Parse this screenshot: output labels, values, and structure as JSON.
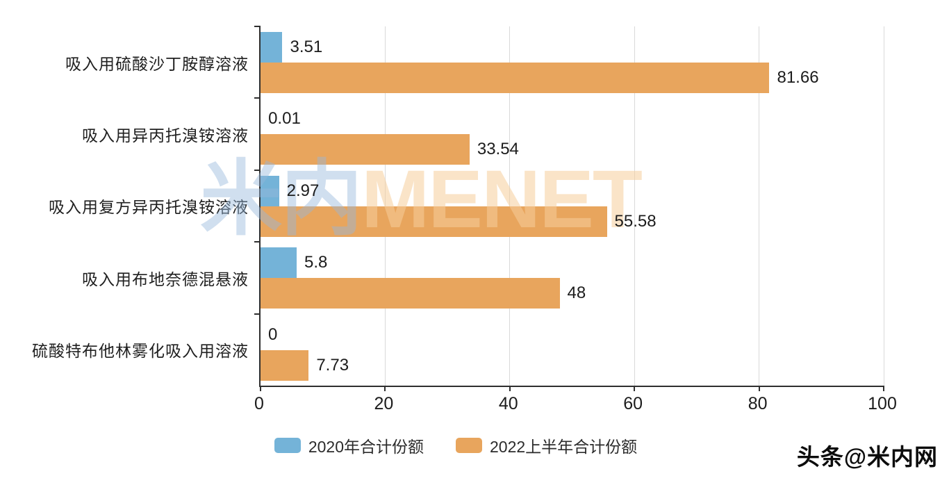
{
  "watermarks": {
    "center_part1": "米内",
    "center_part2": "MENET",
    "bottom_right": "头条@米内网"
  },
  "colors": {
    "bar_2020": "#74b3d8",
    "bar_2022": "#e8a55d",
    "axis": "#2f2f2f",
    "gridline": "#d9d9d9",
    "value_text": "#1c1c1c",
    "watermark_blue": "rgba(150,185,220,0.45)",
    "watermark_orange": "rgba(245,205,155,0.55)"
  },
  "chart_data": {
    "type": "bar",
    "orientation": "horizontal",
    "title": "",
    "categories": [
      "吸入用硫酸沙丁胺醇溶液",
      "吸入用异丙托溴铵溶液",
      "吸入用复方异丙托溴铵溶液",
      "吸入用布地奈德混悬液",
      "硫酸特布他林雾化吸入用溶液"
    ],
    "series": [
      {
        "name": "2020年合计份额",
        "color": "#74b3d8",
        "values": [
          3.51,
          0.01,
          2.97,
          5.8,
          0
        ]
      },
      {
        "name": "2022上半年合计份额",
        "color": "#e8a55d",
        "values": [
          81.66,
          33.54,
          55.58,
          48,
          7.73
        ]
      }
    ],
    "value_labels": {
      "series_0": [
        "3.51",
        "0.01",
        "2.97",
        "5.8",
        "0"
      ],
      "series_1": [
        "81.66",
        "33.54",
        "55.58",
        "48",
        "7.73"
      ]
    },
    "xlabel": "",
    "ylabel": "",
    "xlim": [
      0,
      100
    ],
    "x_ticks": [
      0,
      20,
      40,
      60,
      80,
      100
    ],
    "grid": true,
    "legend_position": "bottom"
  },
  "legend": {
    "items": [
      {
        "label": "2020年合计份额",
        "color": "#74b3d8"
      },
      {
        "label": "2022上半年合计份额",
        "color": "#e8a55d"
      }
    ]
  }
}
